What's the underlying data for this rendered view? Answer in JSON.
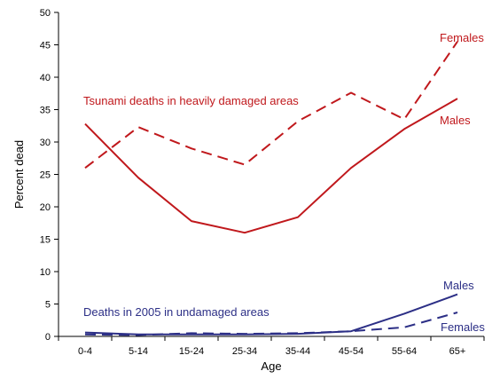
{
  "chart_data": {
    "type": "line",
    "title": "",
    "xlabel": "Age",
    "ylabel": "Percent dead",
    "ylim": [
      0,
      50
    ],
    "yticks": [
      0,
      5,
      10,
      15,
      20,
      25,
      30,
      35,
      40,
      45,
      50
    ],
    "categories": [
      "0-4",
      "5-14",
      "15-24",
      "25-34",
      "35-44",
      "45-54",
      "55-64",
      "65+"
    ],
    "grid": false,
    "legend": "none",
    "series": [
      {
        "name": "Males",
        "group": "Tsunami deaths in heavily damaged areas",
        "color": "#c0181c",
        "dash": "solid",
        "values": [
          32.8,
          24.5,
          17.8,
          16.0,
          18.4,
          26.0,
          32.0,
          36.7
        ]
      },
      {
        "name": "Females",
        "group": "Tsunami deaths in heavily damaged areas",
        "color": "#c0181c",
        "dash": "dashed",
        "values": [
          26.0,
          32.3,
          29.0,
          26.5,
          33.2,
          37.6,
          33.5,
          45.5
        ]
      },
      {
        "name": "Males",
        "group": "Deaths in 2005 in undamaged areas",
        "color": "#2c2f86",
        "dash": "solid",
        "values": [
          0.6,
          0.3,
          0.3,
          0.3,
          0.4,
          0.8,
          3.5,
          6.5
        ]
      },
      {
        "name": "Females",
        "group": "Deaths in 2005 in undamaged areas",
        "color": "#2c2f86",
        "dash": "dashed",
        "values": [
          0.3,
          0.2,
          0.5,
          0.4,
          0.5,
          0.8,
          1.4,
          3.7
        ]
      }
    ],
    "annotations": [
      {
        "text": "Tsunami deaths in heavily damaged areas",
        "color": "#c0181c"
      },
      {
        "text": "Deaths in 2005 in undamaged areas",
        "color": "#2c2f86"
      },
      {
        "text": "Females",
        "color": "#c0181c"
      },
      {
        "text": "Males",
        "color": "#c0181c"
      },
      {
        "text": "Males",
        "color": "#2c2f86"
      },
      {
        "text": "Females",
        "color": "#2c2f86"
      }
    ]
  }
}
